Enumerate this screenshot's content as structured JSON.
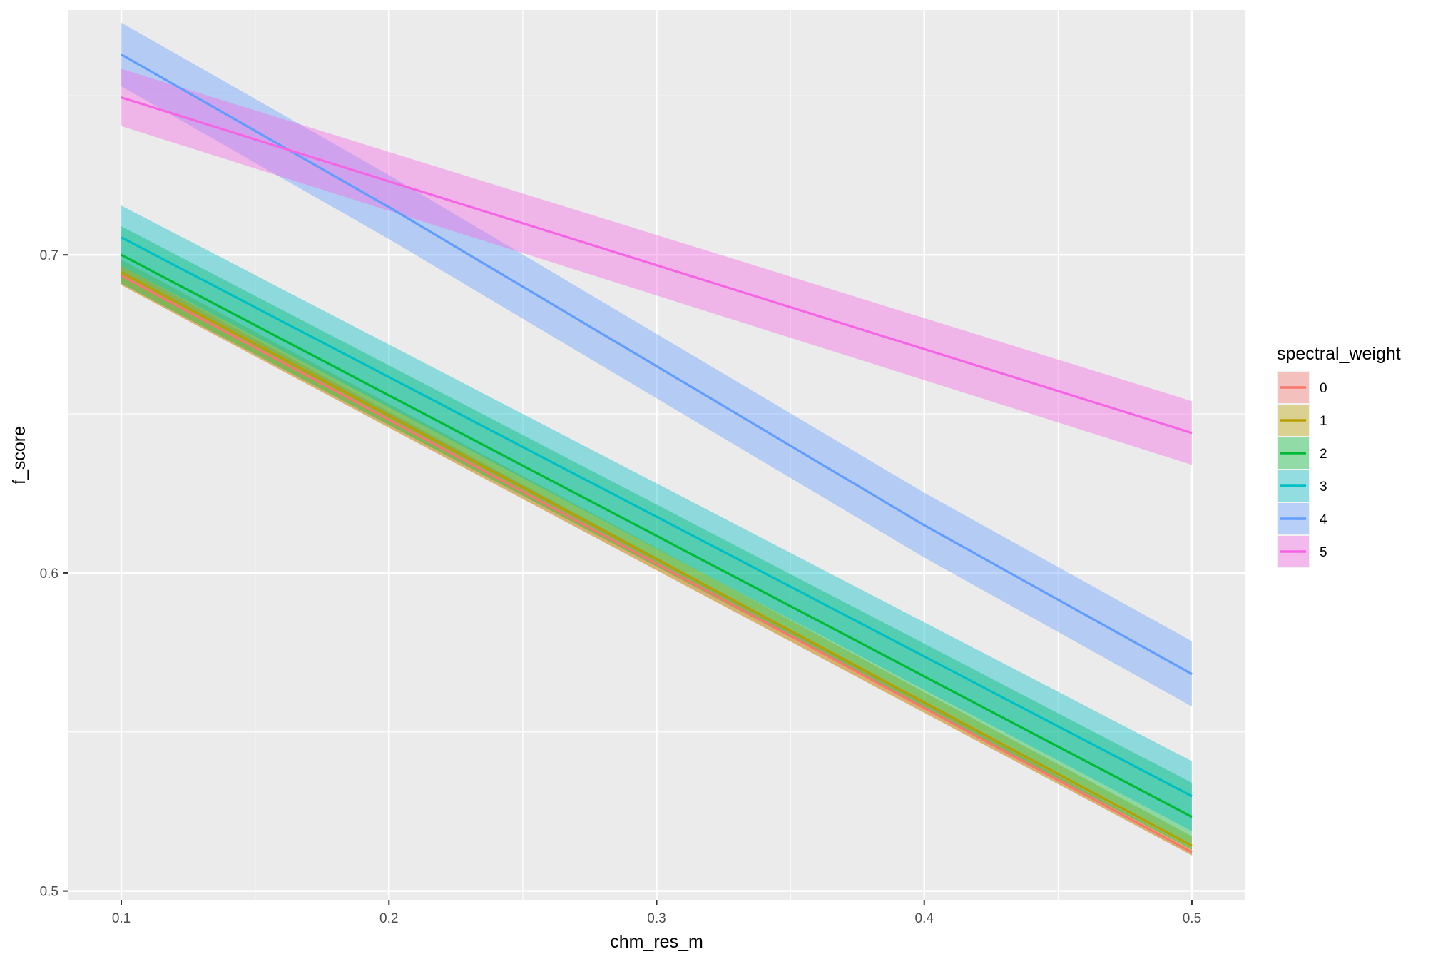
{
  "chart_data": {
    "type": "line",
    "xlabel": "chm_res_m",
    "ylabel": "f_score",
    "xlim": [
      0.08,
      0.52
    ],
    "ylim": [
      0.497,
      0.777
    ],
    "x_ticks": [
      "0.1",
      "0.2",
      "0.3",
      "0.4",
      "0.5"
    ],
    "y_ticks": [
      "0.5",
      "0.6",
      "0.7"
    ],
    "grid": true,
    "legend": {
      "title": "spectral_weight",
      "position": "right"
    },
    "x": [
      0.1,
      0.5
    ],
    "series": [
      {
        "name": "0",
        "color": "#F8766D",
        "values": [
          0.6935,
          0.5122
        ],
        "lower": [
          0.6905,
          0.5112
        ],
        "upper": [
          0.6965,
          0.5132
        ]
      },
      {
        "name": "1",
        "color": "#B79F00",
        "values": [
          0.6945,
          0.5142
        ],
        "lower": [
          0.6905,
          0.5112
        ],
        "upper": [
          0.6985,
          0.5172
        ]
      },
      {
        "name": "2",
        "color": "#00BA38",
        "values": [
          0.7,
          0.5233
        ],
        "lower": [
          0.691,
          0.513
        ],
        "upper": [
          0.709,
          0.534
        ]
      },
      {
        "name": "3",
        "color": "#00BFC4",
        "values": [
          0.7055,
          0.5298
        ],
        "lower": [
          0.6965,
          0.5188
        ],
        "upper": [
          0.7155,
          0.5408
        ]
      },
      {
        "name": "4",
        "color": "#619CFF",
        "values": [
          0.763,
          0.5682
        ],
        "lower": [
          0.753,
          0.558
        ],
        "upper": [
          0.773,
          0.5785
        ],
        "curve_x": [
          0.1,
          0.2,
          0.3,
          0.4,
          0.5
        ],
        "curve_y": [
          0.763,
          0.715,
          0.665,
          0.615,
          0.5682
        ]
      },
      {
        "name": "5",
        "color": "#F564E3",
        "values": [
          0.7495,
          0.644
        ],
        "lower": [
          0.7405,
          0.634
        ],
        "upper": [
          0.7585,
          0.654
        ]
      }
    ]
  }
}
